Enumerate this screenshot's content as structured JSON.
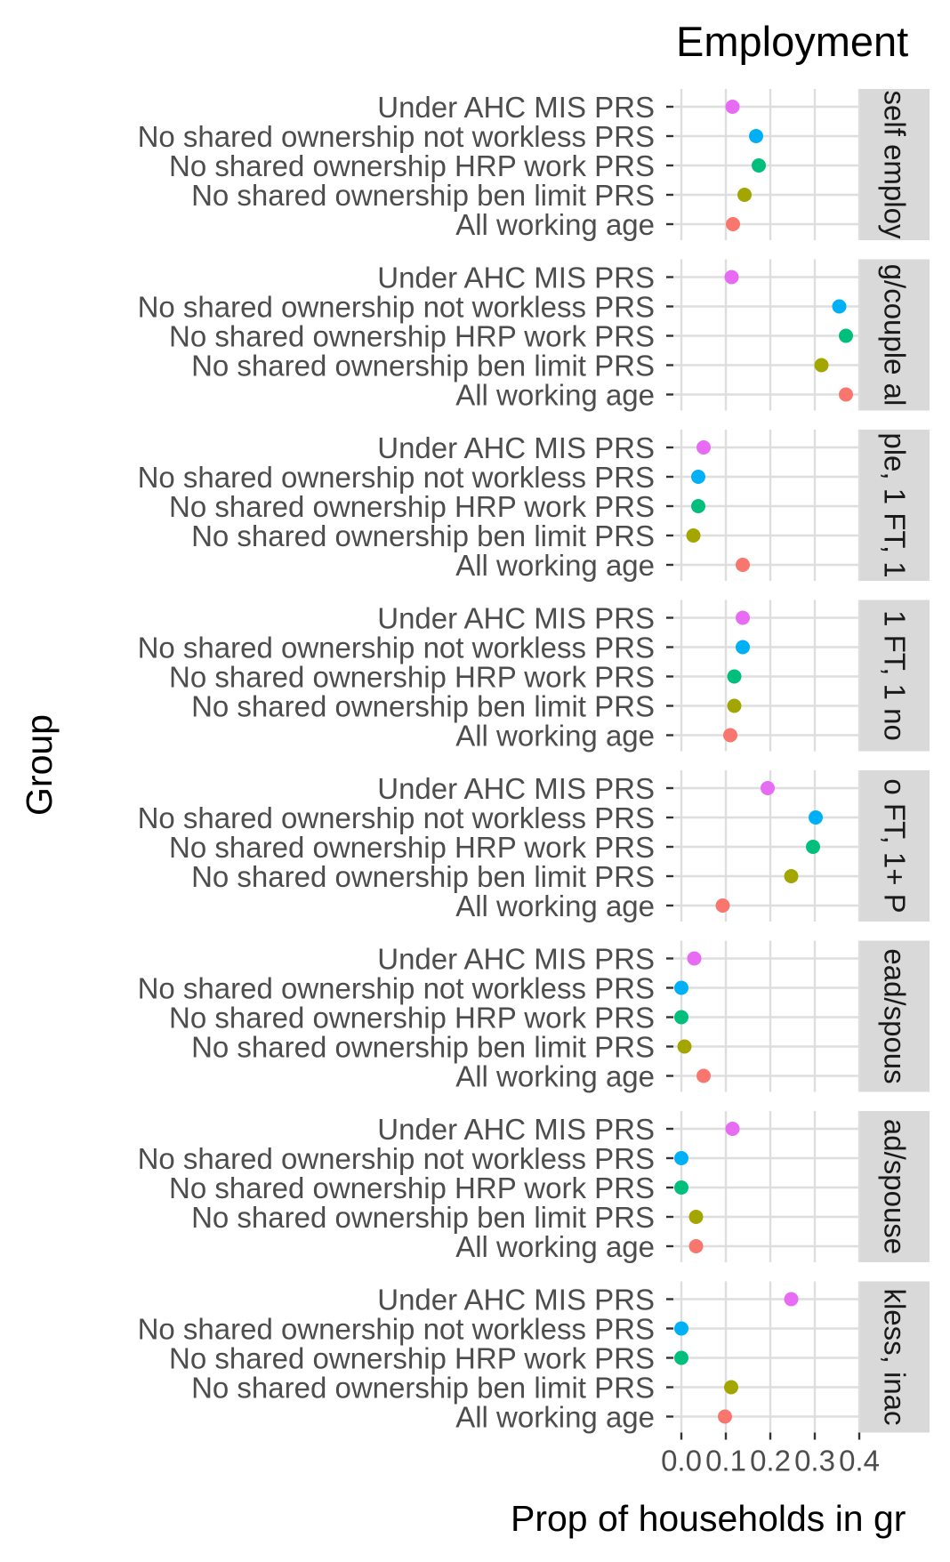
{
  "chart_data": {
    "type": "scatter",
    "title": "Employment",
    "xlabel": "Prop of households in gr",
    "ylabel": "Group",
    "xlim": [
      -0.03,
      0.4
    ],
    "x_ticks": [
      "0.0",
      "0.1",
      "0.2",
      "0.3",
      "0.4"
    ],
    "x_tick_values": [
      0,
      0.1,
      0.2,
      0.3,
      0.4
    ],
    "categories": [
      "Under AHC MIS PRS",
      "No shared ownership not workless PRS",
      "No shared ownership HRP work PRS",
      "No shared ownership ben limit PRS",
      "All working age"
    ],
    "colors": {
      "Under AHC MIS PRS": "#e76bf3",
      "No shared ownership not workless PRS": "#00b0f6",
      "No shared ownership HRP work PRS": "#00bf7d",
      "No shared ownership ben limit PRS": "#a3a500",
      "All working age": "#f8766d"
    },
    "panels": [
      {
        "strip": "self employ",
        "values": [
          0.115,
          0.168,
          0.174,
          0.142,
          0.116
        ]
      },
      {
        "strip": "g/couple al",
        "values": [
          0.113,
          0.355,
          0.37,
          0.315,
          0.37
        ]
      },
      {
        "strip": "ple, 1 FT, 1",
        "values": [
          0.05,
          0.038,
          0.038,
          0.027,
          0.138
        ]
      },
      {
        "strip": "1 FT, 1 no",
        "values": [
          0.138,
          0.138,
          0.119,
          0.119,
          0.11
        ]
      },
      {
        "strip": "o FT, 1+ P",
        "values": [
          0.194,
          0.302,
          0.296,
          0.247,
          0.093
        ]
      },
      {
        "strip": "ead/spous",
        "values": [
          0.029,
          0.0,
          0.0,
          0.007,
          0.05
        ]
      },
      {
        "strip": "ad/spouse",
        "values": [
          0.115,
          0.0,
          0.0,
          0.033,
          0.033
        ]
      },
      {
        "strip": "kless, inac",
        "values": [
          0.247,
          0.0,
          0.0,
          0.112,
          0.098
        ]
      }
    ]
  }
}
